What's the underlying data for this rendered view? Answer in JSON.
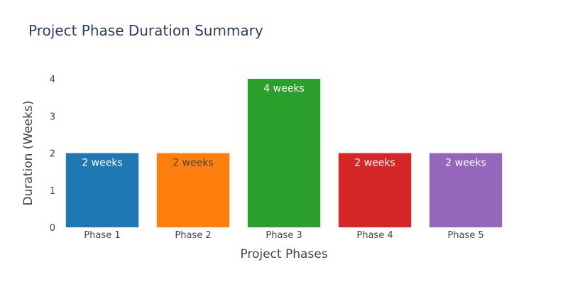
{
  "chart_data": {
    "type": "bar",
    "title": "Project Phase Duration Summary",
    "xlabel": "Project Phases",
    "ylabel": "Duration (Weeks)",
    "ylim": [
      0,
      4
    ],
    "yticks": [
      "0",
      "1",
      "2",
      "3",
      "4"
    ],
    "grid": false,
    "categories": [
      "Phase 1",
      "Phase 2",
      "Phase 3",
      "Phase 4",
      "Phase 5"
    ],
    "values": [
      2,
      2,
      4,
      2,
      2
    ],
    "data_labels": [
      "2 weeks",
      "2 weeks",
      "4 weeks",
      "2 weeks",
      "2 weeks"
    ],
    "colors": [
      "#1f77b4",
      "#ff7f0e",
      "#2ca02c",
      "#d62728",
      "#9467bd"
    ],
    "label_colors": [
      "#ffffff",
      "#444444",
      "#ffffff",
      "#ffffff",
      "#ffffff"
    ]
  }
}
